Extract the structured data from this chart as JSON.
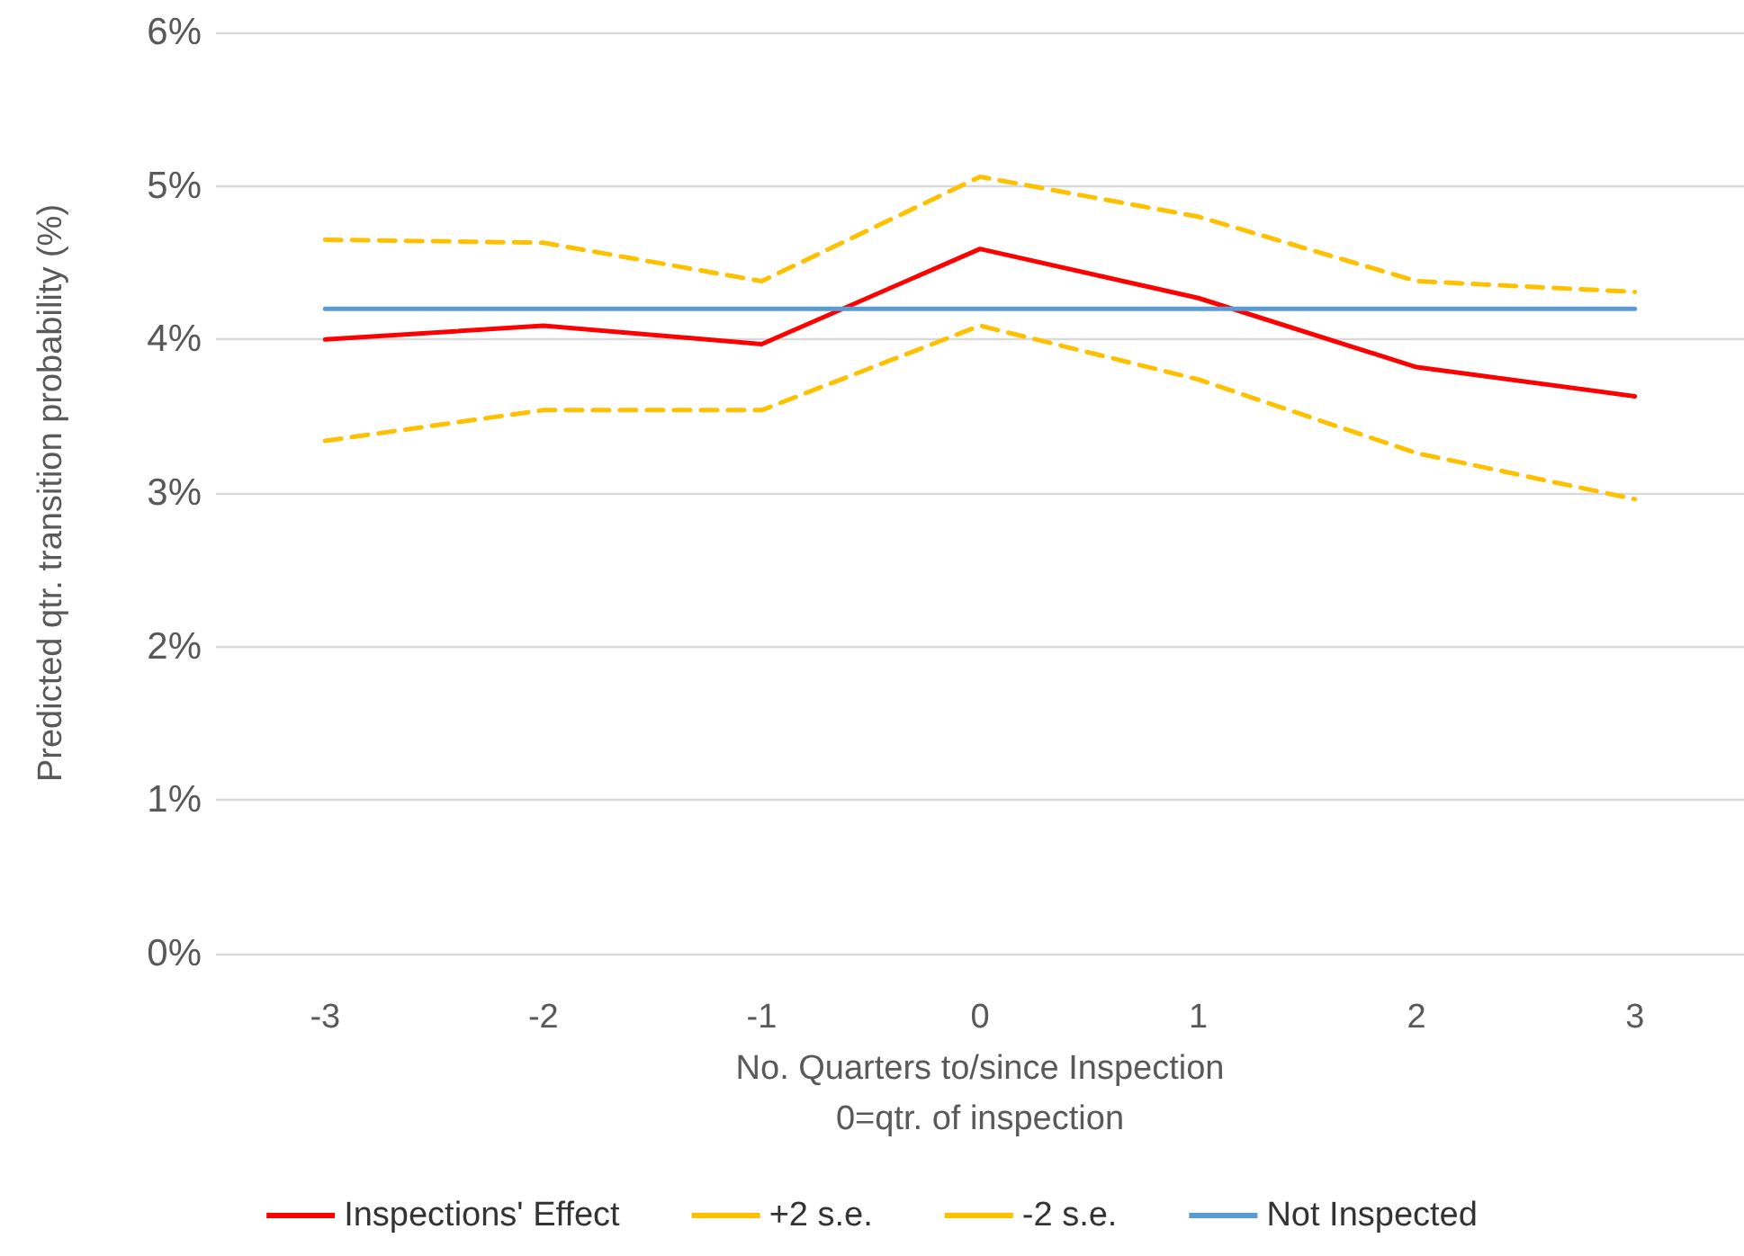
{
  "chart_data": {
    "type": "line",
    "xlabel": "No. Quarters to/since Inspection\n0=qtr. of inspection",
    "ylabel": "Predicted qtr. transition probability (%)",
    "categories": [
      "-3",
      "-2",
      "-1",
      "0",
      "1",
      "2",
      "3"
    ],
    "series": [
      {
        "name": "Inspections' Effect",
        "color": "#ff0000",
        "line_style": "solid",
        "values": [
          4.0,
          4.09,
          3.97,
          4.59,
          4.27,
          3.82,
          3.63
        ]
      },
      {
        "name": "+2 s.e.",
        "color": "#ffc000",
        "line_style": "dashed",
        "values": [
          4.65,
          4.63,
          4.38,
          5.06,
          4.8,
          4.38,
          4.31
        ]
      },
      {
        "name": "-2 s.e.",
        "color": "#ffc000",
        "line_style": "dashed",
        "values": [
          3.34,
          3.54,
          3.54,
          4.09,
          3.74,
          3.26,
          2.96
        ]
      },
      {
        "name": "Not Inspected",
        "color": "#5b9bd5",
        "line_style": "solid",
        "values": [
          4.2,
          4.2,
          4.2,
          4.2,
          4.2,
          4.2,
          4.2
        ]
      }
    ],
    "ylim": [
      0,
      6
    ],
    "yticks": [
      {
        "value": 0,
        "label": "0%"
      },
      {
        "value": 1,
        "label": "1%"
      },
      {
        "value": 2,
        "label": "2%"
      },
      {
        "value": 3,
        "label": "3%"
      },
      {
        "value": 4,
        "label": "4%"
      },
      {
        "value": 5,
        "label": "5%"
      },
      {
        "value": 6,
        "label": "6%"
      }
    ],
    "grid": "y",
    "legend": "bottom",
    "marker": "none"
  }
}
